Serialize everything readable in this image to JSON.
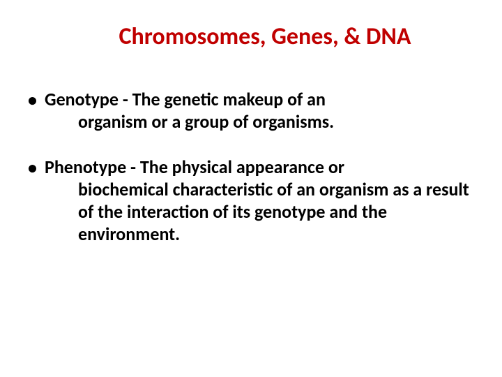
{
  "slide": {
    "title": "Chromosomes, Genes, & DNA",
    "title_color": "#c00000",
    "title_fontsize": 34,
    "body_color": "#000000",
    "body_fontsize": 26,
    "line_height": 1.22,
    "bullets": [
      {
        "first_line": "Genotype - The genetic makeup of an",
        "continuation": "organism or a group of organisms."
      },
      {
        "first_line": "Phenotype - The physical appearance or",
        "continuation": "biochemical characteristic of an organism as a result of the interaction of its genotype and the environment."
      }
    ],
    "bullet_char": "•",
    "background_color": "#ffffff"
  }
}
